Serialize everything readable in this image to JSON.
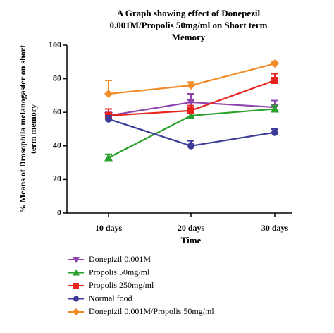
{
  "chart_data": {
    "type": "line",
    "title": "A Graph showing effect of Donepezil 0.001M/Propolis 50mg/ml on Short term Memory",
    "x_label": "Time",
    "y_label": "% Means of Drosophila melanogaster on short term memory",
    "categories": [
      "10 days",
      "20 days",
      "30 days"
    ],
    "ylim": [
      0,
      100
    ],
    "yticks": [
      0,
      20,
      40,
      60,
      80,
      100
    ],
    "series": [
      {
        "name": "Donepizil 0.001M",
        "color": "#8e44ad",
        "marker": "triangle-down",
        "values": [
          58,
          66,
          63
        ],
        "errors": [
          2,
          5,
          4
        ]
      },
      {
        "name": "Propolis 50mg/ml",
        "color": "#2ca02c",
        "marker": "triangle-up",
        "values": [
          33,
          58,
          62
        ],
        "errors": [
          2,
          2,
          2
        ]
      },
      {
        "name": "Propolis 250mg/ml",
        "color": "#e8231c",
        "marker": "square",
        "values": [
          58,
          61,
          79
        ],
        "errors": [
          4,
          3,
          4
        ]
      },
      {
        "name": "Normal food",
        "color": "#3d3d99",
        "marker": "circle",
        "values": [
          56,
          40,
          48
        ],
        "errors": [
          2,
          3,
          2
        ]
      },
      {
        "name": "Donepizil 0.001M/Propolis 50mg/ml",
        "color": "#f28c28",
        "marker": "diamond",
        "values": [
          71,
          76,
          89
        ],
        "errors": [
          8,
          2,
          1
        ]
      }
    ]
  }
}
